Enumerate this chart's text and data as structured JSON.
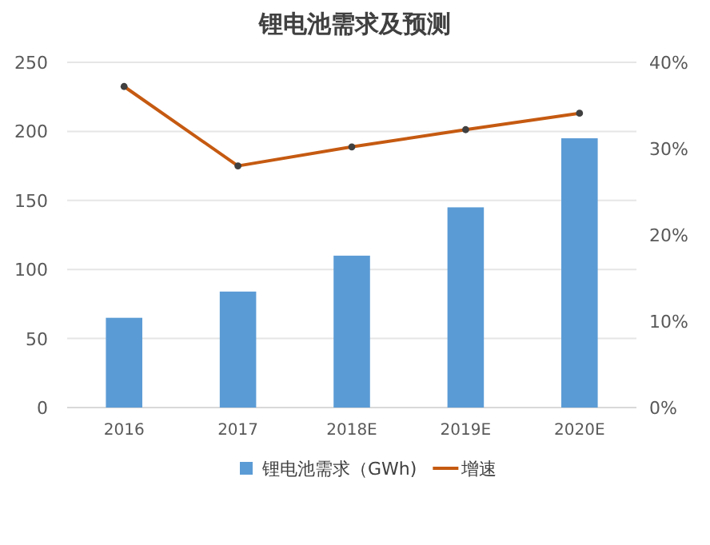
{
  "chart_data": {
    "type": "bar",
    "title": "锂电池需求及预测",
    "categories": [
      "2016",
      "2017",
      "2018E",
      "2019E",
      "2020E"
    ],
    "series": [
      {
        "name": "锂电池需求（GWh)",
        "color": "#5b9bd5",
        "values": [
          65,
          84,
          110,
          145,
          195
        ]
      },
      {
        "name": "增速",
        "type": "line",
        "axis": "y2",
        "color": "#c55a11",
        "marker": "circle",
        "values": [
          37.2,
          28.0,
          30.2,
          32.2,
          34.1
        ]
      }
    ],
    "ylim": [
      0,
      250
    ],
    "yticks": [
      0,
      50,
      100,
      150,
      200,
      250
    ],
    "y2lim": [
      0,
      40
    ],
    "y2ticks": [
      {
        "value": 0,
        "label": "0%"
      },
      {
        "value": 10,
        "label": "10%"
      },
      {
        "value": 20,
        "label": "20%"
      },
      {
        "value": 30,
        "label": "30%"
      },
      {
        "value": 40,
        "label": "40%"
      }
    ],
    "grid": "y",
    "legend": "bottom"
  }
}
